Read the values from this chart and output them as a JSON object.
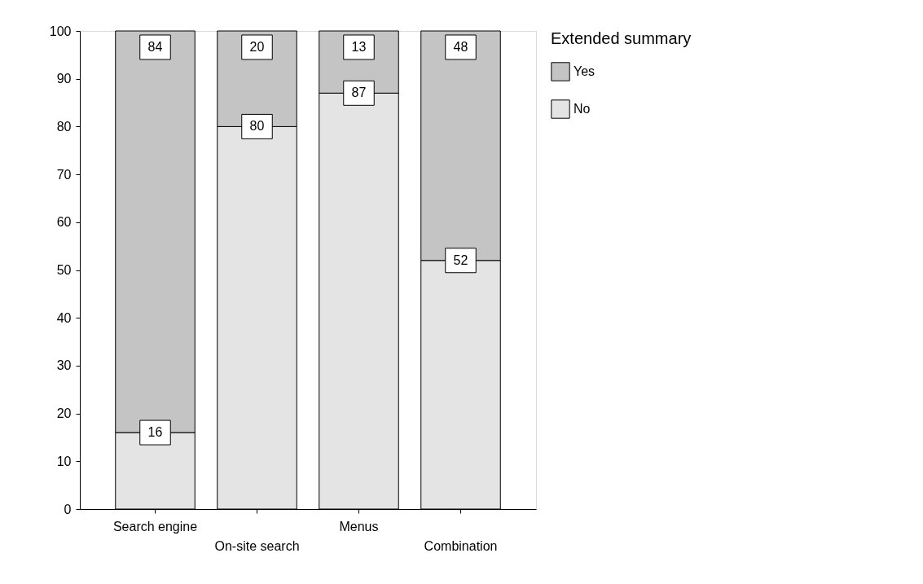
{
  "chart_data": {
    "type": "bar",
    "stacked": true,
    "categories": [
      "Search engine",
      "On-site search",
      "Menus",
      "Combination"
    ],
    "series": [
      {
        "name": "No",
        "color": "#e4e4e4",
        "values": [
          16,
          80,
          87,
          52
        ]
      },
      {
        "name": "Yes",
        "color": "#c4c4c4",
        "values": [
          84,
          20,
          13,
          48
        ]
      }
    ],
    "ylim": [
      0,
      100
    ],
    "yticks": [
      0,
      10,
      20,
      30,
      40,
      50,
      60,
      70,
      80,
      90,
      100
    ],
    "grid": false,
    "legend": "right",
    "legend_title": "Extended summary",
    "data_labels": true
  }
}
